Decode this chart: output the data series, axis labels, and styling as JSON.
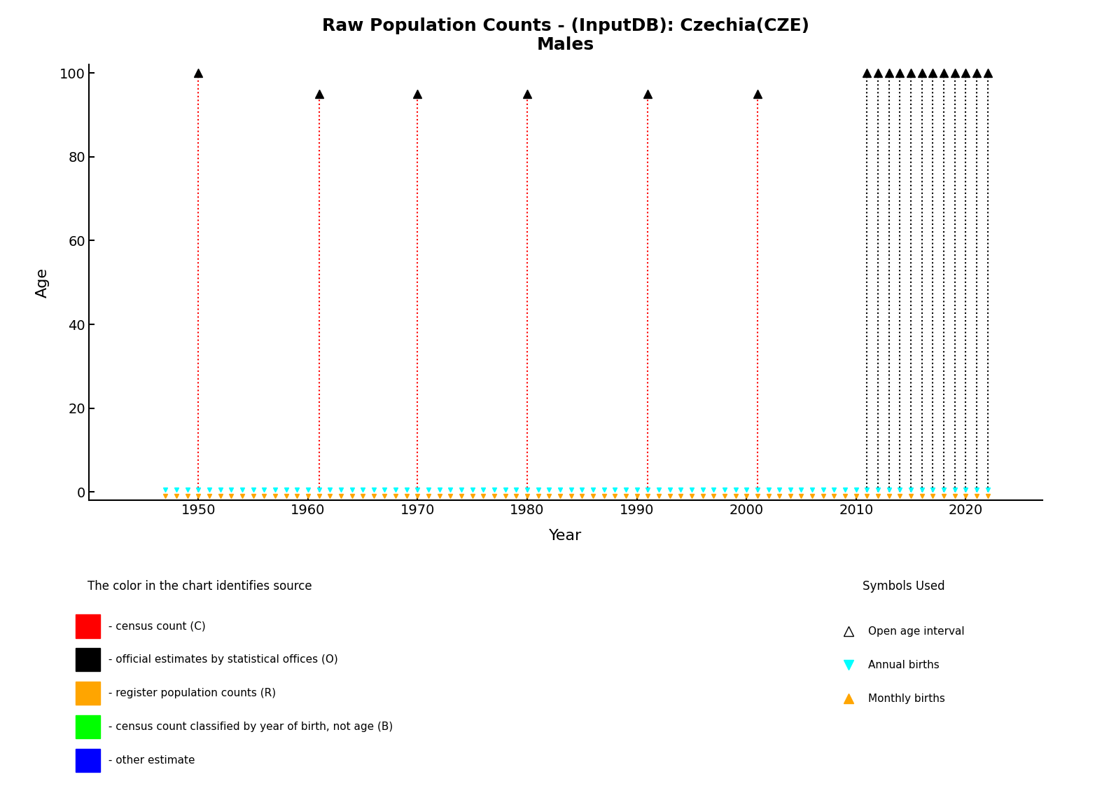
{
  "title_line1": "Raw Population Counts - (InputDB): Czechia(CZE)",
  "title_line2": "Males",
  "xlabel": "Year",
  "ylabel": "Age",
  "xlim": [
    1940,
    2027
  ],
  "ylim": [
    -2,
    102
  ],
  "yticks": [
    0,
    20,
    40,
    60,
    80,
    100
  ],
  "xticks": [
    1950,
    1960,
    1970,
    1980,
    1990,
    2000,
    2010,
    2020
  ],
  "census_years_red": [
    1950,
    1961,
    1970,
    1980,
    1991,
    2001
  ],
  "census_max_age_red": [
    100,
    95,
    95,
    95,
    95,
    95
  ],
  "annual_years_black": [
    2011,
    2012,
    2013,
    2014,
    2015,
    2016,
    2017,
    2018,
    2019,
    2020,
    2021,
    2022
  ],
  "annual_max_age_black": [
    100,
    100,
    100,
    100,
    100,
    100,
    100,
    100,
    100,
    100,
    100,
    100
  ],
  "annual_births_years": [
    1947,
    1948,
    1949,
    1950,
    1951,
    1952,
    1953,
    1954,
    1955,
    1956,
    1957,
    1958,
    1959,
    1960,
    1961,
    1962,
    1963,
    1964,
    1965,
    1966,
    1967,
    1968,
    1969,
    1970,
    1971,
    1972,
    1973,
    1974,
    1975,
    1976,
    1977,
    1978,
    1979,
    1980,
    1981,
    1982,
    1983,
    1984,
    1985,
    1986,
    1987,
    1988,
    1989,
    1990,
    1991,
    1992,
    1993,
    1994,
    1995,
    1996,
    1997,
    1998,
    1999,
    2000,
    2001,
    2002,
    2003,
    2004,
    2005,
    2006,
    2007,
    2008,
    2009,
    2010,
    2011,
    2012,
    2013,
    2014,
    2015,
    2016,
    2017,
    2018,
    2019,
    2020,
    2021,
    2022
  ],
  "monthly_births_years": [
    1947,
    1948,
    1949,
    1950,
    1951,
    1952,
    1953,
    1954,
    1955,
    1956,
    1957,
    1958,
    1959,
    1960,
    1961,
    1962,
    1963,
    1964,
    1965,
    1966,
    1967,
    1968,
    1969,
    1970,
    1971,
    1972,
    1973,
    1974,
    1975,
    1976,
    1977,
    1978,
    1979,
    1980,
    1981,
    1982,
    1983,
    1984,
    1985,
    1986,
    1987,
    1988,
    1989,
    1990,
    1991,
    1992,
    1993,
    1994,
    1995,
    1996,
    1997,
    1998,
    1999,
    2000,
    2001,
    2002,
    2003,
    2004,
    2005,
    2006,
    2007,
    2008,
    2009,
    2010,
    2011,
    2012,
    2013,
    2014,
    2015,
    2016,
    2017,
    2018,
    2019,
    2020,
    2021,
    2022
  ],
  "colors": {
    "red": "#FF0000",
    "black": "#000000",
    "cyan": "#00FFFF",
    "orange": "#FFA500",
    "white": "#FFFFFF",
    "green": "#00FF00",
    "blue": "#0000FF"
  },
  "legend_color_items": [
    {
      "color": "#FF0000",
      "label": " - census count (C)"
    },
    {
      "color": "#000000",
      "label": " - official estimates by statistical offices (O)"
    },
    {
      "color": "#FFA500",
      "label": " - register population counts (R)"
    },
    {
      "color": "#00FF00",
      "label": " - census count classified by year of birth, not age (B)"
    },
    {
      "color": "#0000FF",
      "label": " - other estimate"
    }
  ],
  "legend_symbol_items": [
    {
      "marker": "^",
      "color": "#000000",
      "fill": "none",
      "label": "Open age interval"
    },
    {
      "marker": "v",
      "color": "#00FFFF",
      "fill": "#00FFFF",
      "label": "Annual births"
    },
    {
      "marker": "^",
      "color": "#FFA500",
      "fill": "#FFA500",
      "label": "Monthly births"
    }
  ]
}
